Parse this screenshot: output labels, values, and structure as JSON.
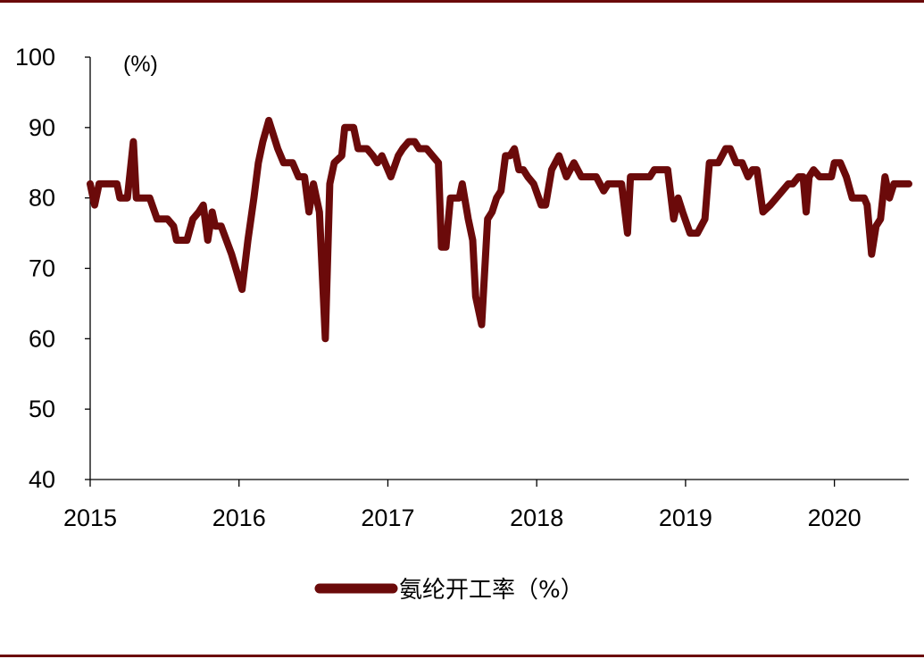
{
  "chart_data": {
    "type": "line",
    "title": "",
    "xlabel": "",
    "ylabel": "",
    "unit_label": "(%)",
    "ylim": [
      40,
      100
    ],
    "yticks": [
      40,
      50,
      60,
      70,
      80,
      90,
      100
    ],
    "xlim": [
      2015.0,
      2020.5
    ],
    "xticks": [
      2015,
      2016,
      2017,
      2018,
      2019,
      2020
    ],
    "xtick_labels": [
      "2015",
      "2016",
      "2017",
      "2018",
      "2019",
      "2020"
    ],
    "grid": false,
    "legend_position": "bottom-center",
    "series": [
      {
        "name": "氨纶开工率（%）",
        "color": "#6b0a0a",
        "points": [
          [
            2015.0,
            82
          ],
          [
            2015.03,
            79
          ],
          [
            2015.06,
            82
          ],
          [
            2015.1,
            82
          ],
          [
            2015.18,
            82
          ],
          [
            2015.2,
            80
          ],
          [
            2015.25,
            80
          ],
          [
            2015.29,
            88
          ],
          [
            2015.31,
            80
          ],
          [
            2015.35,
            80
          ],
          [
            2015.4,
            80
          ],
          [
            2015.45,
            77
          ],
          [
            2015.52,
            77
          ],
          [
            2015.56,
            76
          ],
          [
            2015.58,
            74
          ],
          [
            2015.65,
            74
          ],
          [
            2015.69,
            77
          ],
          [
            2015.73,
            78
          ],
          [
            2015.76,
            79
          ],
          [
            2015.79,
            74
          ],
          [
            2015.82,
            78
          ],
          [
            2015.84,
            76
          ],
          [
            2015.88,
            76
          ],
          [
            2015.95,
            72
          ],
          [
            2016.02,
            67
          ],
          [
            2016.06,
            74
          ],
          [
            2016.1,
            80
          ],
          [
            2016.13,
            85
          ],
          [
            2016.16,
            88
          ],
          [
            2016.2,
            91
          ],
          [
            2016.23,
            89
          ],
          [
            2016.26,
            87
          ],
          [
            2016.3,
            85
          ],
          [
            2016.36,
            85
          ],
          [
            2016.4,
            83
          ],
          [
            2016.44,
            83
          ],
          [
            2016.47,
            78
          ],
          [
            2016.5,
            82
          ],
          [
            2016.54,
            78
          ],
          [
            2016.58,
            60
          ],
          [
            2016.61,
            82
          ],
          [
            2016.64,
            85
          ],
          [
            2016.69,
            86
          ],
          [
            2016.71,
            90
          ],
          [
            2016.77,
            90
          ],
          [
            2016.8,
            87
          ],
          [
            2016.86,
            87
          ],
          [
            2016.9,
            86
          ],
          [
            2016.93,
            85
          ],
          [
            2016.96,
            86
          ],
          [
            2017.02,
            83
          ],
          [
            2017.07,
            86
          ],
          [
            2017.1,
            87
          ],
          [
            2017.14,
            88
          ],
          [
            2017.18,
            88
          ],
          [
            2017.21,
            87
          ],
          [
            2017.26,
            87
          ],
          [
            2017.3,
            86
          ],
          [
            2017.34,
            85
          ],
          [
            2017.36,
            73
          ],
          [
            2017.39,
            73
          ],
          [
            2017.42,
            80
          ],
          [
            2017.48,
            80
          ],
          [
            2017.5,
            82
          ],
          [
            2017.54,
            77
          ],
          [
            2017.57,
            74
          ],
          [
            2017.59,
            66
          ],
          [
            2017.63,
            62
          ],
          [
            2017.67,
            77
          ],
          [
            2017.7,
            78
          ],
          [
            2017.73,
            80
          ],
          [
            2017.76,
            81
          ],
          [
            2017.79,
            86
          ],
          [
            2017.82,
            86
          ],
          [
            2017.85,
            87
          ],
          [
            2017.88,
            84
          ],
          [
            2017.91,
            84
          ],
          [
            2017.94,
            83
          ],
          [
            2017.98,
            82
          ],
          [
            2018.03,
            79
          ],
          [
            2018.06,
            79
          ],
          [
            2018.1,
            84
          ],
          [
            2018.15,
            86
          ],
          [
            2018.2,
            83
          ],
          [
            2018.25,
            85
          ],
          [
            2018.3,
            83
          ],
          [
            2018.35,
            83
          ],
          [
            2018.4,
            83
          ],
          [
            2018.45,
            81
          ],
          [
            2018.48,
            82
          ],
          [
            2018.52,
            82
          ],
          [
            2018.57,
            82
          ],
          [
            2018.61,
            75
          ],
          [
            2018.63,
            83
          ],
          [
            2018.7,
            83
          ],
          [
            2018.76,
            83
          ],
          [
            2018.79,
            84
          ],
          [
            2018.82,
            84
          ],
          [
            2018.88,
            84
          ],
          [
            2018.92,
            77
          ],
          [
            2018.95,
            80
          ],
          [
            2018.98,
            78
          ],
          [
            2019.03,
            75
          ],
          [
            2019.08,
            75
          ],
          [
            2019.13,
            77
          ],
          [
            2019.16,
            85
          ],
          [
            2019.22,
            85
          ],
          [
            2019.27,
            87
          ],
          [
            2019.3,
            87
          ],
          [
            2019.34,
            85
          ],
          [
            2019.38,
            85
          ],
          [
            2019.42,
            83
          ],
          [
            2019.45,
            84
          ],
          [
            2019.48,
            84
          ],
          [
            2019.52,
            78
          ],
          [
            2019.57,
            79
          ],
          [
            2019.61,
            80
          ],
          [
            2019.65,
            81
          ],
          [
            2019.69,
            82
          ],
          [
            2019.72,
            82
          ],
          [
            2019.76,
            83
          ],
          [
            2019.79,
            83
          ],
          [
            2019.81,
            78
          ],
          [
            2019.83,
            83
          ],
          [
            2019.86,
            84
          ],
          [
            2019.9,
            83
          ],
          [
            2019.95,
            83
          ],
          [
            2019.98,
            83
          ],
          [
            2020.0,
            85
          ],
          [
            2020.04,
            85
          ],
          [
            2020.08,
            83
          ],
          [
            2020.12,
            80
          ],
          [
            2020.16,
            80
          ],
          [
            2020.2,
            80
          ],
          [
            2020.22,
            79
          ],
          [
            2020.25,
            72
          ],
          [
            2020.28,
            76
          ],
          [
            2020.31,
            77
          ],
          [
            2020.34,
            83
          ],
          [
            2020.37,
            80
          ],
          [
            2020.4,
            82
          ],
          [
            2020.5,
            82
          ]
        ]
      }
    ]
  }
}
